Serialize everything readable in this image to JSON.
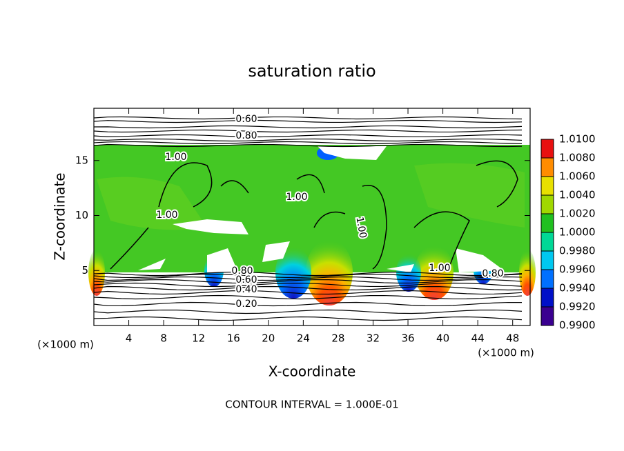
{
  "chart_data": {
    "type": "contour",
    "title": "saturation ratio",
    "x_label": "X-coordinate",
    "y_label": "Z-coordinate",
    "x_unit_label": "(×1000 m)",
    "x_unit_label_right": "(×1000 m)",
    "footer": "CONTOUR INTERVAL = 1.000E-01",
    "xlim": [
      0,
      50
    ],
    "xticks": [
      4,
      8,
      12,
      16,
      20,
      24,
      28,
      32,
      36,
      40,
      44,
      48
    ],
    "ylim": [
      0,
      19.75
    ],
    "yticks": [
      5,
      10,
      15
    ],
    "contour_labels": [
      "0.60",
      "0.80",
      "1.00",
      "1.00",
      "1.00",
      "1.00",
      "0.80",
      "0.60",
      "0.40",
      "0.20",
      "1.00",
      "0.80"
    ],
    "colorbar": {
      "lim": [
        0.99,
        1.01
      ],
      "ticks": [
        {
          "value": 0.99,
          "label": "0.9900"
        },
        {
          "value": 0.992,
          "label": "0.9920"
        },
        {
          "value": 0.994,
          "label": "0.9940"
        },
        {
          "value": 0.996,
          "label": "0.9960"
        },
        {
          "value": 0.998,
          "label": "0.9980"
        },
        {
          "value": 1.0,
          "label": "1.0000"
        },
        {
          "value": 1.002,
          "label": "1.0020"
        },
        {
          "value": 1.004,
          "label": "1.0040"
        },
        {
          "value": 1.006,
          "label": "1.0060"
        },
        {
          "value": 1.008,
          "label": "1.0080"
        },
        {
          "value": 1.01,
          "label": "1.0100"
        }
      ],
      "colors": [
        "#3a0090",
        "#0010c8",
        "#0070ff",
        "#00c8f0",
        "#00d896",
        "#20c020",
        "#a0d800",
        "#e8e000",
        "#ff8c00",
        "#e81010"
      ]
    }
  }
}
